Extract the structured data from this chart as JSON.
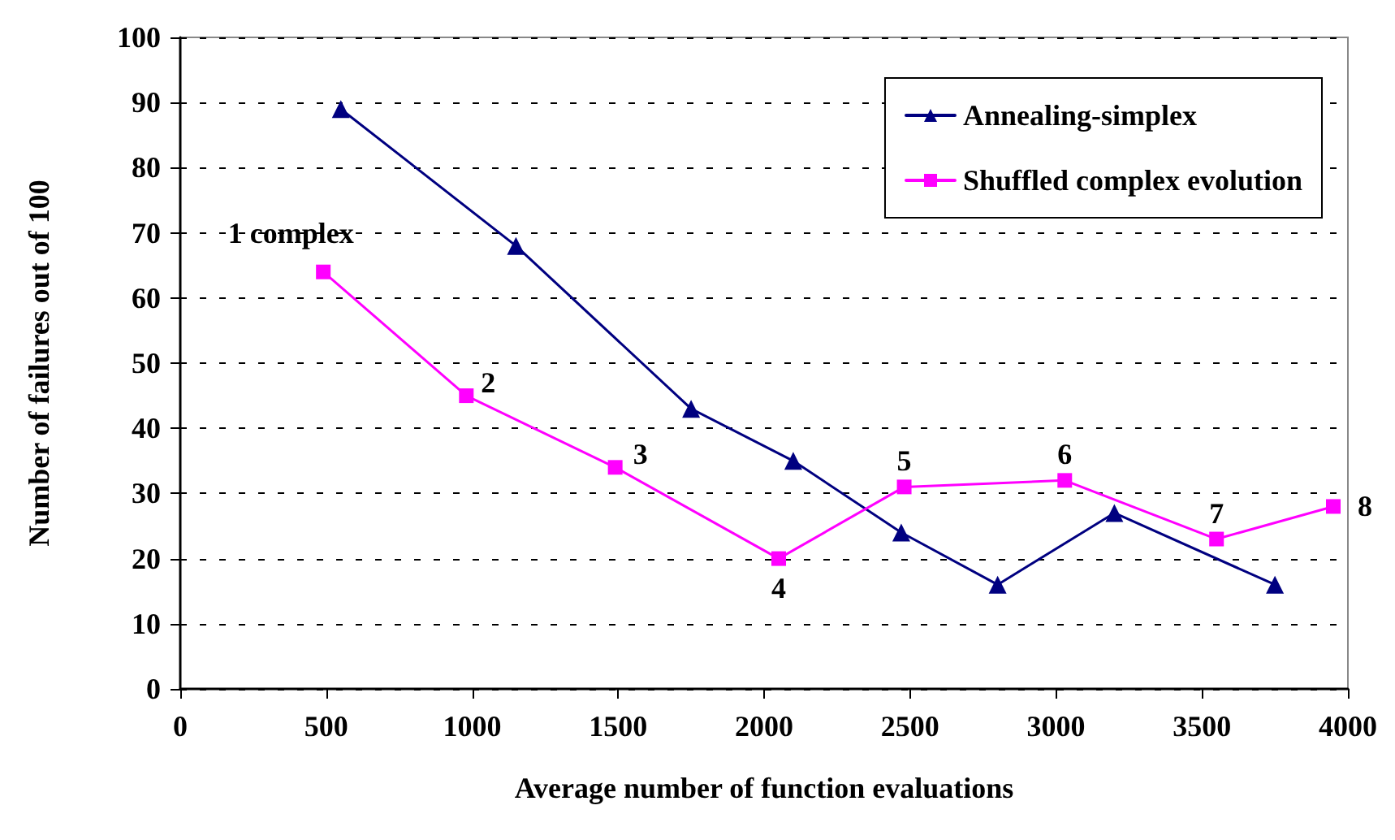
{
  "chart_data": {
    "type": "line",
    "xlabel": "Average number of function evaluations",
    "ylabel": "Number of failures out of 100",
    "xlim": [
      0,
      4000
    ],
    "xticks": [
      0,
      500,
      1000,
      1500,
      2000,
      2500,
      3000,
      3500,
      4000
    ],
    "ylim": [
      0,
      100
    ],
    "yticks": [
      0,
      10,
      20,
      30,
      40,
      50,
      60,
      70,
      80,
      90,
      100
    ],
    "grid": "y",
    "legend": "top right",
    "line_style": "solid",
    "series": [
      {
        "name": "Annealing-simplex",
        "color": "#000080",
        "marker": "triangle",
        "x": [
          550,
          1150,
          1750,
          2100,
          2470,
          2800,
          3200,
          3750
        ],
        "values": [
          89,
          68,
          43,
          35,
          24,
          16,
          27,
          16
        ]
      },
      {
        "name": "Shuffled complex evolution",
        "color": "#ff00ff",
        "marker": "square",
        "x": [
          490,
          980,
          1490,
          2050,
          2480,
          3030,
          3550,
          3950
        ],
        "values": [
          64,
          45,
          34,
          20,
          31,
          32,
          23,
          28
        ]
      }
    ],
    "annotations": [
      {
        "text": "1 complex",
        "x": 490,
        "y": 64
      },
      {
        "text": "2",
        "x": 980,
        "y": 45
      },
      {
        "text": "3",
        "x": 1490,
        "y": 34
      },
      {
        "text": "4",
        "x": 2050,
        "y": 20
      },
      {
        "text": "5",
        "x": 2480,
        "y": 31
      },
      {
        "text": "6",
        "x": 3030,
        "y": 32
      },
      {
        "text": "7",
        "x": 3550,
        "y": 23
      },
      {
        "text": "8",
        "x": 3950,
        "y": 28
      }
    ]
  }
}
